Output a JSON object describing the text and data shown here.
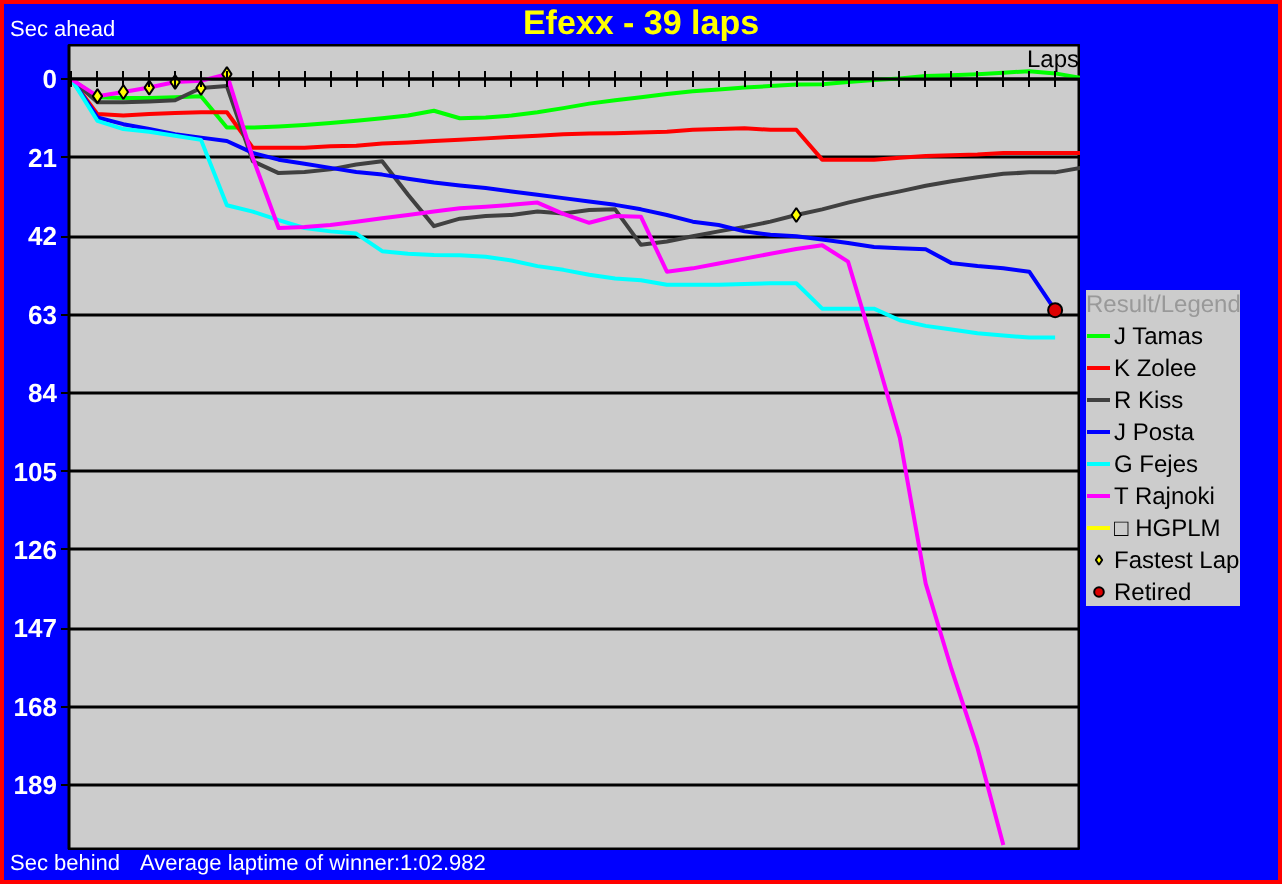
{
  "chart_data": {
    "type": "line",
    "title": "Efexx - 39 laps",
    "xlabel": "Laps",
    "legend_title": "Result/Legend",
    "annotations": [
      "Sec ahead",
      "Sec behind",
      "Average laptime of winner:1:02.982"
    ],
    "categories": [
      null,
      null,
      null,
      null,
      null,
      null,
      null,
      null,
      null,
      null,
      null,
      null,
      null,
      null,
      null,
      null,
      null,
      null,
      null,
      null,
      null,
      null,
      null,
      null,
      null,
      null,
      null,
      null,
      null,
      null,
      null,
      null,
      null,
      null,
      null,
      null,
      null,
      null,
      null,
      null
    ],
    "ylim": [
      206.6,
      -9.2
    ],
    "yticks": [
      0,
      21,
      42,
      63,
      84,
      105,
      126,
      147,
      168,
      189
    ],
    "grid": "y",
    "legend": "right",
    "tick_labels": "y",
    "series": [
      {
        "name": "J Tamas",
        "color": "#00ff00",
        "values": [
          0,
          4.8,
          5.0,
          5.0,
          4.8,
          4.5,
          12.9,
          12.9,
          12.6,
          12.2,
          11.7,
          11.1,
          10.4,
          9.7,
          8.4,
          10.4,
          10.2,
          9.7,
          8.8,
          7.7,
          6.5,
          5.6,
          4.8,
          3.9,
          3.2,
          2.7,
          2.2,
          1.8,
          1.4,
          1.3,
          0.7,
          0.2,
          -0.2,
          -0.9,
          -1.1,
          -1.4,
          -1.8,
          -2.2,
          -1.6,
          -0.4
        ]
      },
      {
        "name": "K Zolee",
        "color": "#ff0000",
        "values": [
          0,
          9.3,
          9.7,
          9.3,
          9.0,
          8.8,
          8.8,
          18.3,
          18.3,
          18.3,
          17.9,
          17.8,
          17.2,
          16.9,
          16.5,
          16.2,
          15.8,
          15.4,
          15.1,
          14.7,
          14.5,
          14.4,
          14.2,
          14.0,
          13.5,
          13.3,
          13.1,
          13.5,
          13.5,
          21.5,
          21.5,
          21.5,
          21.0,
          20.5,
          20.3,
          20.1,
          19.7,
          19.7,
          19.7,
          19.7
        ]
      },
      {
        "name": "R Kiss",
        "color": "#404040",
        "values": [
          0,
          6.1,
          6.1,
          5.9,
          5.6,
          2.3,
          1.8,
          21.9,
          25.1,
          24.8,
          24.1,
          22.8,
          21.9,
          30.9,
          39.3,
          37.3,
          36.6,
          36.3,
          35.4,
          35.9,
          35.0,
          34.8,
          44.3,
          43.4,
          42.0,
          40.7,
          39.5,
          38.1,
          36.3,
          34.8,
          33.0,
          31.4,
          30.0,
          28.5,
          27.3,
          26.2,
          25.3,
          24.9,
          24.9,
          23.7
        ]
      },
      {
        "name": "J Posta",
        "color": "#0000ff",
        "values": [
          0,
          10.2,
          12.0,
          13.3,
          14.7,
          15.6,
          16.5,
          19.7,
          21.5,
          22.6,
          23.7,
          24.8,
          25.5,
          26.6,
          27.6,
          28.4,
          29.1,
          30.0,
          30.9,
          31.8,
          32.7,
          33.6,
          34.8,
          36.3,
          38.1,
          39.0,
          40.7,
          41.6,
          42.0,
          42.9,
          43.8,
          44.9,
          45.2,
          45.5,
          49.2,
          50.0,
          50.6,
          51.5,
          61.8,
          null
        ]
      },
      {
        "name": "G Fejes",
        "color": "#00ffff",
        "values": [
          0,
          11.1,
          13.3,
          14.0,
          15.1,
          16.2,
          33.7,
          35.4,
          37.7,
          39.8,
          40.7,
          41.3,
          46.0,
          46.7,
          47.0,
          47.1,
          47.5,
          48.5,
          50.0,
          51.0,
          52.3,
          53.3,
          53.8,
          55.0,
          55.0,
          55.0,
          54.8,
          54.6,
          54.6,
          61.4,
          61.4,
          61.4,
          64.5,
          66.0,
          67.0,
          68.0,
          68.6,
          69.1,
          69.1,
          null
        ]
      },
      {
        "name": "T Rajnoki",
        "color": "#ff00ff",
        "values": [
          0,
          4.5,
          3.4,
          2.2,
          0.7,
          0.4,
          -1.4,
          21.0,
          39.8,
          39.5,
          39.0,
          38.1,
          37.2,
          36.3,
          35.4,
          34.5,
          34.1,
          33.6,
          33.0,
          36.0,
          38.4,
          36.6,
          36.8,
          51.5,
          50.6,
          49.3,
          48.0,
          46.7,
          45.4,
          44.4,
          48.8,
          72,
          96,
          135,
          158,
          179,
          205,
          null,
          null,
          null
        ]
      },
      {
        "name": "□ HGPLM",
        "color": "#ffff00",
        "values": [
          null,
          null,
          null,
          null,
          null,
          null,
          null,
          null,
          null,
          null,
          null,
          null,
          null,
          null,
          null,
          null,
          null,
          null,
          null,
          null,
          null,
          null,
          null,
          null,
          null,
          null,
          null,
          null,
          null,
          null,
          null,
          null,
          null,
          null,
          null,
          null,
          null,
          null,
          null,
          null
        ]
      },
      {
        "name": "Fastest Lap",
        "type": "scatter",
        "marker": "diamond",
        "color": "#ffff00",
        "values": [
          null,
          4.5,
          3.4,
          2.2,
          0.7,
          2.3,
          -1.4,
          null,
          null,
          null,
          null,
          null,
          null,
          null,
          null,
          null,
          null,
          null,
          null,
          null,
          null,
          null,
          null,
          null,
          null,
          null,
          null,
          null,
          36.3,
          null,
          null,
          null,
          null,
          null,
          null,
          null,
          null,
          null,
          null,
          null
        ]
      },
      {
        "name": "Retired",
        "type": "scatter",
        "marker": "circle",
        "color": "#dd0000",
        "values": [
          null,
          null,
          null,
          null,
          null,
          null,
          null,
          null,
          null,
          null,
          null,
          null,
          null,
          null,
          null,
          null,
          null,
          null,
          null,
          null,
          null,
          null,
          null,
          null,
          null,
          null,
          null,
          null,
          null,
          null,
          null,
          null,
          null,
          null,
          null,
          null,
          null,
          null,
          61.8,
          null
        ]
      }
    ]
  }
}
